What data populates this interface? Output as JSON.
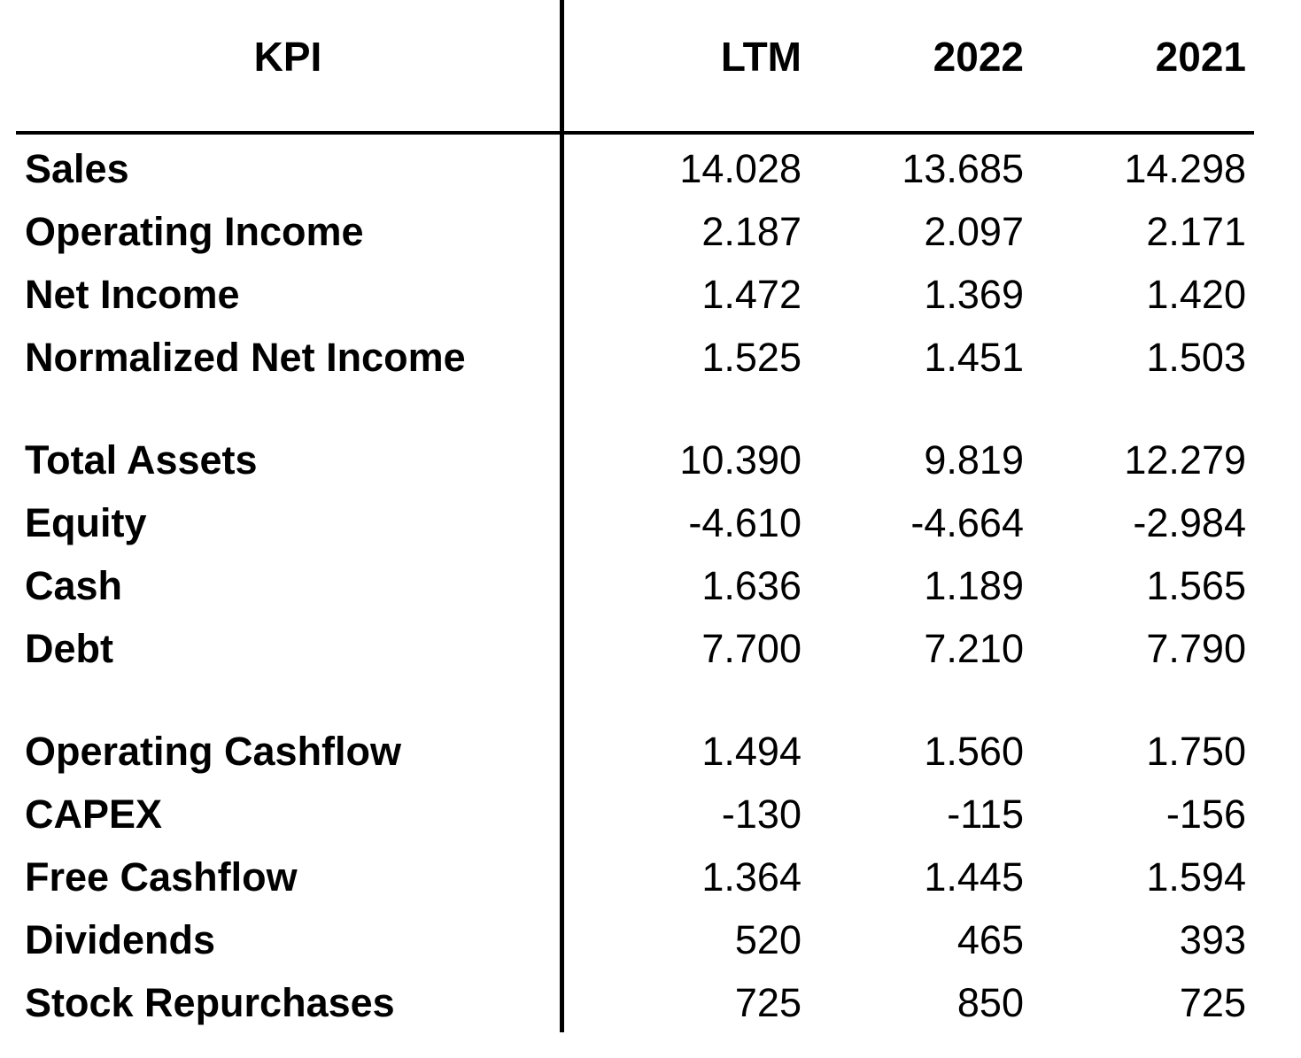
{
  "chart_data": {
    "type": "table",
    "header": {
      "label": "KPI",
      "columns": [
        "LTM",
        "2022",
        "2021"
      ]
    },
    "rows": [
      {
        "label": "Sales",
        "values": [
          "14.028",
          "13.685",
          "14.298"
        ]
      },
      {
        "label": "Operating Income",
        "values": [
          "2.187",
          "2.097",
          "2.171"
        ]
      },
      {
        "label": "Net Income",
        "values": [
          "1.472",
          "1.369",
          "1.420"
        ]
      },
      {
        "label": "Normalized Net Income",
        "values": [
          "1.525",
          "1.451",
          "1.503"
        ]
      },
      {
        "label": "Total Assets",
        "values": [
          "10.390",
          "9.819",
          "12.279"
        ]
      },
      {
        "label": "Equity",
        "values": [
          "-4.610",
          "-4.664",
          "-2.984"
        ]
      },
      {
        "label": "Cash",
        "values": [
          "1.636",
          "1.189",
          "1.565"
        ]
      },
      {
        "label": "Debt",
        "values": [
          "7.700",
          "7.210",
          "7.790"
        ]
      },
      {
        "label": "Operating Cashflow",
        "values": [
          "1.494",
          "1.560",
          "1.750"
        ]
      },
      {
        "label": "CAPEX",
        "values": [
          "-130",
          "-115",
          "-156"
        ]
      },
      {
        "label": "Free Cashflow",
        "values": [
          "1.364",
          "1.445",
          "1.594"
        ]
      },
      {
        "label": "Dividends",
        "values": [
          "520",
          "465",
          "393"
        ]
      },
      {
        "label": "Stock Repurchases",
        "values": [
          "725",
          "850",
          "725"
        ]
      }
    ]
  }
}
